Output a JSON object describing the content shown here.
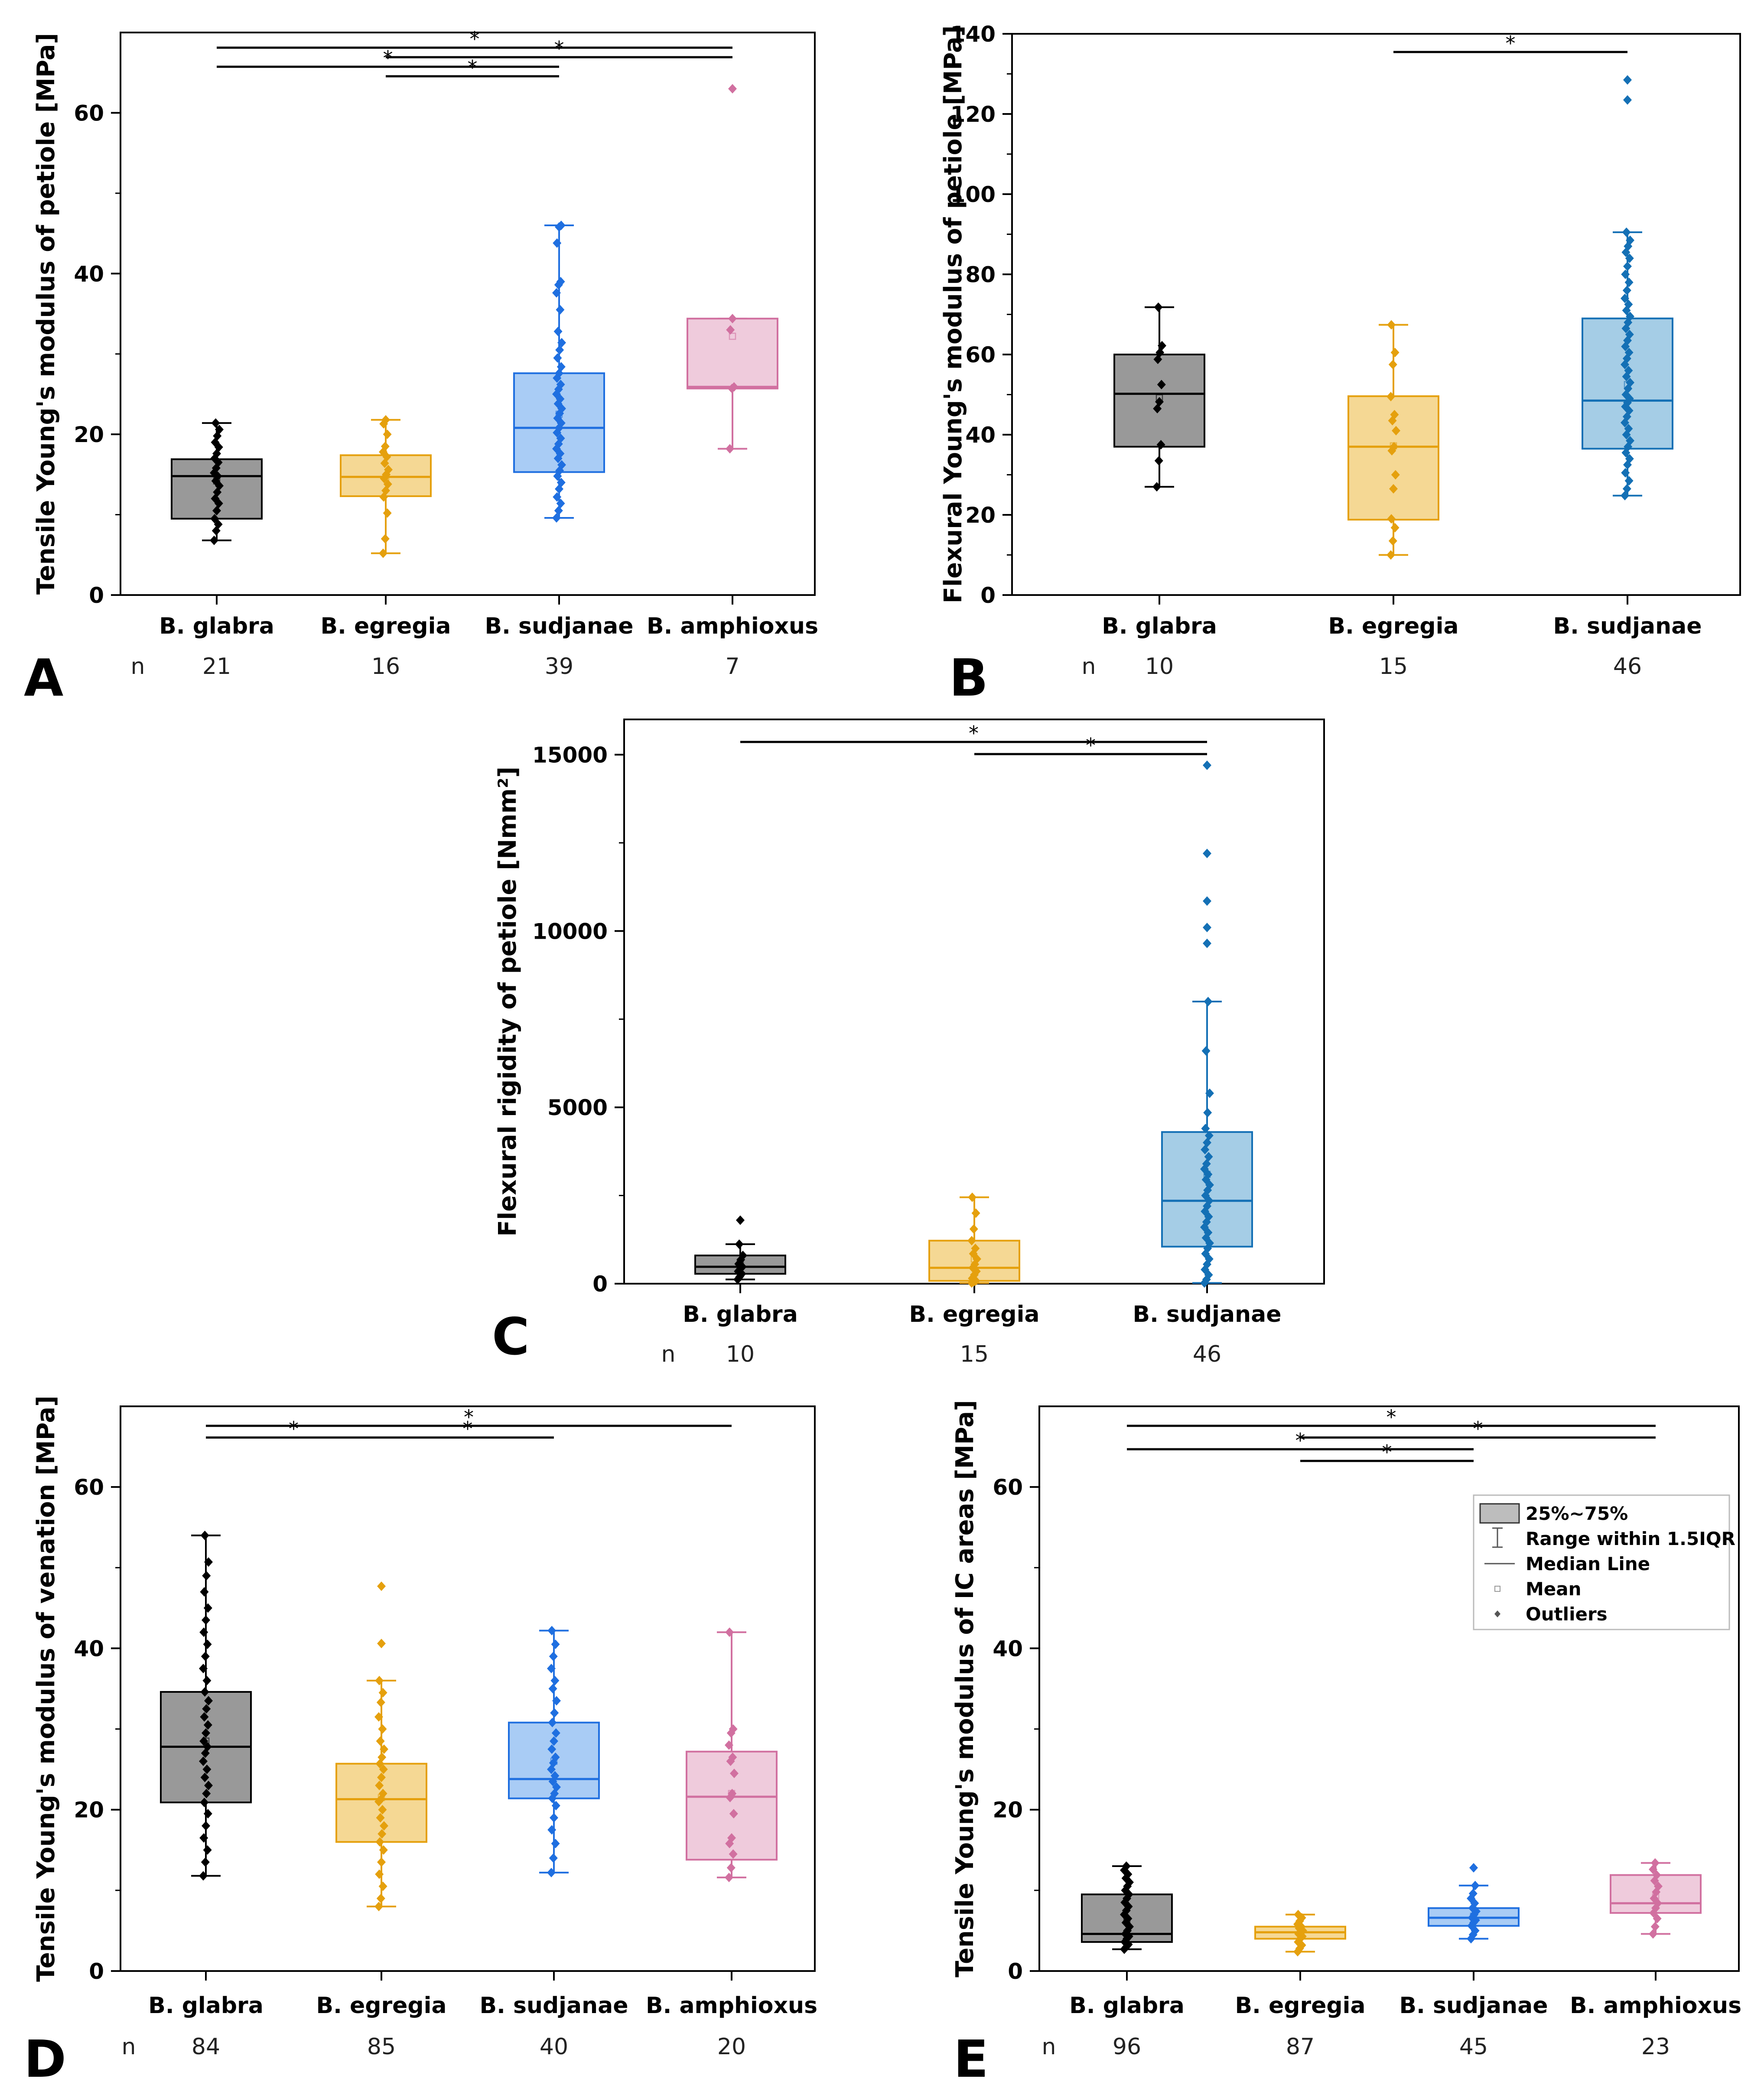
{
  "figure": {
    "legend": {
      "items": [
        {
          "symbol": "box",
          "label": "25%~75%"
        },
        {
          "symbol": "whisker",
          "label": "Range within 1.5IQR"
        },
        {
          "symbol": "median",
          "label": "Median Line"
        },
        {
          "symbol": "mean",
          "label": "Mean"
        },
        {
          "symbol": "outlier",
          "label": "Outliers"
        }
      ]
    },
    "colors": {
      "glabra": "#000000",
      "glabra_fill": "#999999",
      "egregia": "#E5A00D",
      "egregia_fill": "#F5D894",
      "sudjanae_bright": "#1F6FE0",
      "sudjanae_bright_fill": "#A9CCF5",
      "sudjanae_dark": "#1470B5",
      "sudjanae_dark_fill": "#A5CDE6",
      "amphioxus": "#D170A0",
      "amphioxus_fill": "#EFCBDC"
    }
  },
  "chart_data": [
    {
      "panel": "A",
      "type": "box",
      "ylabel": "Tensile Young's modulus of petiole [MPa]",
      "ylim": [
        0,
        70
      ],
      "yticks": [
        0,
        20,
        40,
        60
      ],
      "n_label": "n",
      "categories": [
        "B. glabra",
        "B. egregia",
        "B. sudjanae",
        "B. amphioxus"
      ],
      "n": [
        "21",
        "16",
        "39",
        "7"
      ],
      "boxes": [
        {
          "color": "glabra",
          "q1": 9.5,
          "median": 14.8,
          "q3": 16.9,
          "whisker_low": 6.8,
          "whisker_high": 21.4,
          "mean": 14.2,
          "points": [
            6.8,
            8,
            8.8,
            9.5,
            10.5,
            11.4,
            12,
            12.8,
            13.6,
            14.2,
            14.8,
            15.2,
            15.8,
            16.5,
            17,
            17.6,
            18.4,
            19,
            19.8,
            20.6,
            21.4
          ],
          "outliers": []
        },
        {
          "color": "egregia",
          "q1": 12.3,
          "median": 14.7,
          "q3": 17.4,
          "whisker_low": 5.2,
          "whisker_high": 21.8,
          "mean": 14.6,
          "points": [
            5.2,
            7,
            10.2,
            12.2,
            13,
            13.8,
            14.5,
            15,
            15.6,
            16.4,
            17.2,
            17.8,
            18.5,
            20,
            21.3,
            21.8
          ],
          "outliers": []
        },
        {
          "color": "sudjanae_bright",
          "q1": 15.3,
          "median": 20.8,
          "q3": 27.6,
          "whisker_low": 9.6,
          "whisker_high": 46,
          "mean": 22.5,
          "points": [
            9.6,
            10.5,
            11.4,
            12.2,
            13.2,
            14,
            14.8,
            15.5,
            16.2,
            17,
            17.6,
            18.2,
            18.8,
            19.5,
            20.2,
            20.8,
            21.4,
            22,
            22.6,
            23.2,
            23.8,
            24.4,
            25,
            25.6,
            26.2,
            27,
            27.6,
            28.4,
            29.5,
            30.5,
            31.4,
            32.8,
            35.5,
            37.6,
            38.6,
            39,
            43.8,
            45.8,
            46
          ],
          "outliers": []
        },
        {
          "color": "amphioxus",
          "q1": 25.7,
          "median": 25.9,
          "q3": 34.4,
          "whisker_low": 18.2,
          "whisker_high": 34.4,
          "mean": 32.2,
          "points": [
            18.2,
            25.7,
            25.9,
            33,
            34.4
          ],
          "outliers": [
            63
          ]
        }
      ],
      "significance": [
        {
          "from": 0,
          "to": 3,
          "level": 1,
          "label": "*"
        },
        {
          "from": 1,
          "to": 3,
          "level": 2,
          "label": "*"
        },
        {
          "from": 0,
          "to": 2,
          "level": 3,
          "label": "*"
        },
        {
          "from": 1,
          "to": 2,
          "level": 4,
          "label": "*"
        }
      ]
    },
    {
      "panel": "B",
      "type": "box",
      "ylabel": "Flexural Young's modulus of petiole [MPa]",
      "ylim": [
        0,
        140
      ],
      "yticks": [
        0,
        20,
        40,
        60,
        80,
        100,
        120,
        140
      ],
      "n_label": "n",
      "categories": [
        "B. glabra",
        "B. egregia",
        "B. sudjanae"
      ],
      "n": [
        "10",
        "15",
        "46"
      ],
      "boxes": [
        {
          "color": "glabra",
          "q1": 37,
          "median": 50.2,
          "q3": 60,
          "whisker_low": 27,
          "whisker_high": 71.8,
          "mean": 49.2,
          "points": [
            27,
            33.5,
            37.5,
            46.5,
            48.2,
            52.5,
            58.8,
            60.5,
            62.2,
            71.8
          ],
          "outliers": []
        },
        {
          "color": "egregia",
          "q1": 18.8,
          "median": 37,
          "q3": 49.6,
          "whisker_low": 10,
          "whisker_high": 67.4,
          "mean": 37.2,
          "points": [
            10,
            13.5,
            16.8,
            19,
            26.5,
            30,
            36,
            37,
            41,
            43.5,
            45,
            49.5,
            57.5,
            60.5,
            67.4
          ],
          "outliers": []
        },
        {
          "color": "sudjanae_dark",
          "q1": 36.5,
          "median": 48.5,
          "q3": 69,
          "whisker_low": 24.8,
          "whisker_high": 90.5,
          "mean": 52.5,
          "points": [
            24.8,
            26.5,
            28.5,
            30.5,
            32.5,
            34,
            35.5,
            37,
            38.5,
            40,
            41.5,
            43,
            44.5,
            46,
            47,
            48,
            49,
            50,
            51.5,
            53,
            54.5,
            56,
            57.5,
            59,
            60.5,
            62,
            63.5,
            65,
            66.5,
            68,
            69.5,
            71,
            72.5,
            74,
            76,
            78,
            80,
            82,
            84,
            85.5,
            87,
            88.5,
            90.5
          ],
          "outliers": [
            123.5,
            128.5
          ]
        }
      ],
      "significance": [
        {
          "from": 1,
          "to": 2,
          "level": 1,
          "label": "*"
        }
      ]
    },
    {
      "panel": "C",
      "type": "box",
      "ylabel": "Flexural rigidity of petiole [Nmm²]",
      "ylim": [
        0,
        16000
      ],
      "yticks": [
        0,
        5000,
        10000,
        15000
      ],
      "n_label": "n",
      "categories": [
        "B. glabra",
        "B. egregia",
        "B. sudjanae"
      ],
      "n": [
        "10",
        "15",
        "46"
      ],
      "boxes": [
        {
          "color": "glabra",
          "q1": 280,
          "median": 480,
          "q3": 800,
          "whisker_low": 120,
          "whisker_high": 1120,
          "mean": 560,
          "points": [
            120,
            200,
            280,
            350,
            420,
            480,
            560,
            680,
            800,
            1120
          ],
          "outliers": [
            1800
          ]
        },
        {
          "color": "egregia",
          "q1": 80,
          "median": 450,
          "q3": 1220,
          "whisker_low": 20,
          "whisker_high": 2450,
          "mean": 700,
          "points": [
            20,
            50,
            80,
            150,
            250,
            350,
            450,
            550,
            700,
            850,
            1000,
            1220,
            1550,
            2000,
            2450
          ],
          "outliers": []
        },
        {
          "color": "sudjanae_dark",
          "q1": 1050,
          "median": 2350,
          "q3": 4300,
          "whisker_low": 20,
          "whisker_high": 8000,
          "mean": 3100,
          "points": [
            20,
            120,
            250,
            400,
            550,
            700,
            850,
            1000,
            1150,
            1300,
            1450,
            1600,
            1750,
            1900,
            2050,
            2200,
            2350,
            2500,
            2650,
            2800,
            2950,
            3100,
            3250,
            3400,
            3600,
            3800,
            4000,
            4200,
            4400,
            4850,
            5400,
            6600,
            8000
          ],
          "outliers": [
            9650,
            10100,
            10850,
            12200,
            14700
          ]
        }
      ],
      "significance": [
        {
          "from": 0,
          "to": 2,
          "level": 1,
          "label": "*"
        },
        {
          "from": 1,
          "to": 2,
          "level": 2,
          "label": "*"
        }
      ]
    },
    {
      "panel": "D",
      "type": "box",
      "ylabel": "Tensile Young's modulus of venation [MPa]",
      "ylim": [
        0,
        70
      ],
      "yticks": [
        0,
        20,
        40,
        60
      ],
      "n_label": "n",
      "categories": [
        "B. glabra",
        "B. egregia",
        "B. sudjanae",
        "B. amphioxus"
      ],
      "n": [
        "84",
        "85",
        "40",
        "20"
      ],
      "boxes": [
        {
          "color": "glabra",
          "q1": 20.9,
          "median": 27.8,
          "q3": 34.6,
          "whisker_low": 11.8,
          "whisker_high": 54,
          "mean": 28.5,
          "points": [
            11.8,
            13.5,
            15,
            16.5,
            18,
            19.5,
            20.9,
            22,
            23,
            24,
            25,
            26,
            27,
            27.8,
            28.5,
            29.5,
            30.5,
            31.5,
            32.5,
            33.5,
            34.6,
            36,
            37.5,
            39,
            40.5,
            42,
            43.5,
            45,
            47,
            49,
            50.7,
            54
          ],
          "outliers": []
        },
        {
          "color": "egregia",
          "q1": 16,
          "median": 21.3,
          "q3": 25.7,
          "whisker_low": 8,
          "whisker_high": 36,
          "mean": 21.5,
          "points": [
            8,
            9,
            10.5,
            12,
            13.5,
            15,
            16,
            17,
            18,
            19,
            20,
            21,
            21.3,
            22,
            23,
            24,
            25,
            25.7,
            26.5,
            27.5,
            28.5,
            30,
            31.5,
            33.3,
            34.5,
            36
          ],
          "outliers": [
            40.6,
            47.7
          ]
        },
        {
          "color": "sudjanae_bright",
          "q1": 21.4,
          "median": 23.8,
          "q3": 30.8,
          "whisker_low": 12.2,
          "whisker_high": 42.2,
          "mean": 26,
          "points": [
            12.2,
            14,
            15.8,
            17.5,
            19,
            20.5,
            21.4,
            22,
            22.8,
            23.5,
            24.2,
            25,
            25.8,
            26.5,
            27.5,
            28.5,
            29.5,
            30.8,
            32,
            33.5,
            35,
            36,
            37.5,
            39,
            40.5,
            42.2
          ],
          "outliers": []
        },
        {
          "color": "amphioxus",
          "q1": 13.8,
          "median": 21.6,
          "q3": 27.2,
          "whisker_low": 11.6,
          "whisker_high": 42,
          "mean": 22,
          "points": [
            11.6,
            12.8,
            14.5,
            15.8,
            16.5,
            19.5,
            21.5,
            22,
            24.5,
            26,
            26.5,
            28,
            29.5,
            30,
            42
          ],
          "outliers": []
        }
      ],
      "significance": [
        {
          "from": 0,
          "to": 3,
          "level": 1,
          "label": "*"
        },
        {
          "from": 0,
          "to": 1,
          "level": 2,
          "label": "*"
        },
        {
          "from": 1,
          "to": 2,
          "level": 2,
          "label": "*"
        }
      ]
    },
    {
      "panel": "E",
      "type": "box",
      "ylabel": "Tensile Young's modulus of IC areas [MPa]",
      "ylim": [
        0,
        70
      ],
      "yticks": [
        0,
        20,
        40,
        60
      ],
      "n_label": "n",
      "categories": [
        "B. glabra",
        "B. egregia",
        "B. sudjanae",
        "B. amphioxus"
      ],
      "n": [
        "96",
        "87",
        "45",
        "23"
      ],
      "boxes": [
        {
          "color": "glabra",
          "q1": 3.6,
          "median": 4.6,
          "q3": 9.5,
          "whisker_low": 2.7,
          "whisker_high": 13,
          "mean": 6.3,
          "points": [
            2.7,
            3,
            3.3,
            3.6,
            4,
            4.3,
            4.6,
            5,
            5.5,
            6,
            6.5,
            7,
            7.5,
            8,
            8.5,
            9,
            9.5,
            10,
            10.5,
            11,
            11.5,
            12,
            12.5,
            13
          ],
          "outliers": []
        },
        {
          "color": "egregia",
          "q1": 4,
          "median": 4.8,
          "q3": 5.5,
          "whisker_low": 2.4,
          "whisker_high": 7,
          "mean": 4.8,
          "points": [
            2.4,
            2.8,
            3.2,
            3.6,
            4,
            4.3,
            4.6,
            4.8,
            5,
            5.3,
            5.5,
            5.8,
            6.2,
            6.6,
            7
          ],
          "outliers": []
        },
        {
          "color": "sudjanae_bright",
          "q1": 5.6,
          "median": 6.6,
          "q3": 7.8,
          "whisker_low": 4,
          "whisker_high": 10.6,
          "mean": 6.8,
          "points": [
            4,
            4.5,
            5,
            5.6,
            6,
            6.3,
            6.6,
            7,
            7.4,
            7.8,
            8.4,
            9,
            9.6,
            10.6
          ],
          "outliers": [
            12.8
          ]
        },
        {
          "color": "amphioxus",
          "q1": 7.2,
          "median": 8.4,
          "q3": 11.9,
          "whisker_low": 4.6,
          "whisker_high": 13.4,
          "mean": 9.2,
          "points": [
            4.6,
            5.5,
            6.5,
            7.2,
            7.8,
            8.4,
            9,
            9.8,
            10.5,
            11.2,
            11.9,
            12.6,
            13.4
          ],
          "outliers": []
        }
      ],
      "significance": [
        {
          "from": 0,
          "to": 3,
          "level": 1,
          "label": "*"
        },
        {
          "from": 1,
          "to": 3,
          "level": 2,
          "label": "*"
        },
        {
          "from": 0,
          "to": 2,
          "level": 3,
          "label": "*"
        },
        {
          "from": 1,
          "to": 2,
          "level": 4,
          "label": "*"
        }
      ]
    }
  ]
}
